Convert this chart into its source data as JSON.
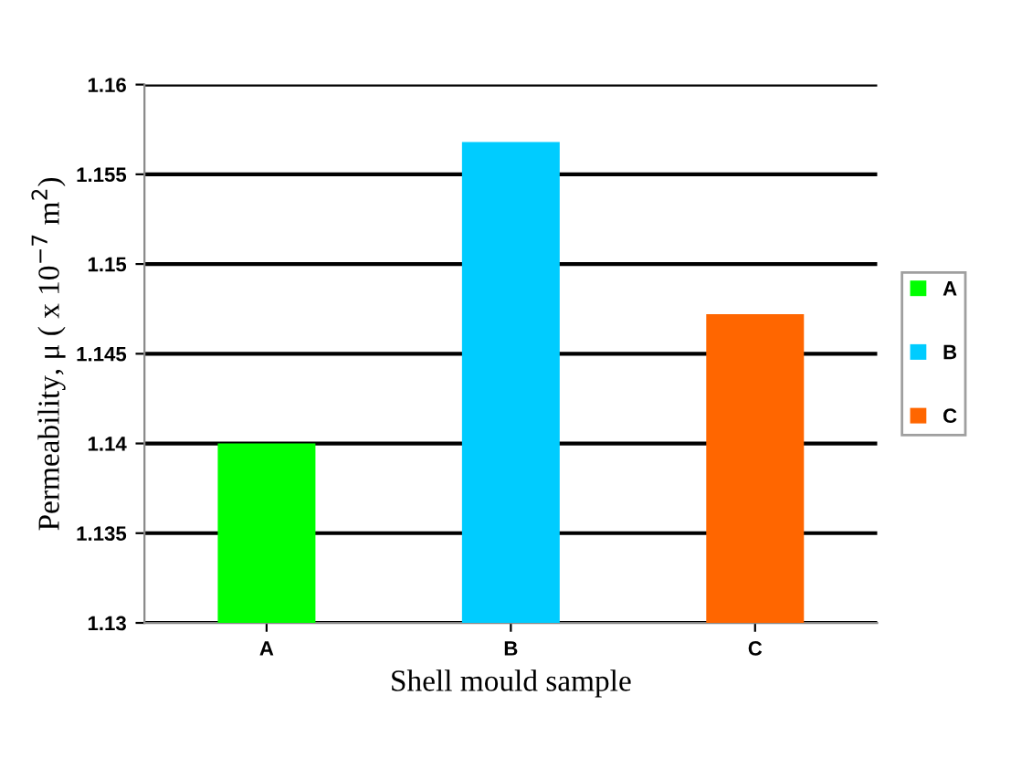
{
  "chart_data": {
    "type": "bar",
    "categories": [
      "A",
      "B",
      "C"
    ],
    "series": [
      {
        "name": "A",
        "color": "#00ff00",
        "values": [
          1.14,
          null,
          null
        ]
      },
      {
        "name": "B",
        "color": "#00ccff",
        "values": [
          null,
          1.1568,
          null
        ]
      },
      {
        "name": "C",
        "color": "#ff6600",
        "values": [
          null,
          null,
          1.1472
        ]
      }
    ],
    "xlabel": "Shell mould sample",
    "ylabel": "Permeability, μ ( x 10$^{−7}$ m$^{2}$)",
    "ylim": [
      1.13,
      1.16
    ],
    "yticks": [
      1.13,
      1.135,
      1.14,
      1.145,
      1.15,
      1.155,
      1.16
    ],
    "grid": "y",
    "legend": "right"
  }
}
